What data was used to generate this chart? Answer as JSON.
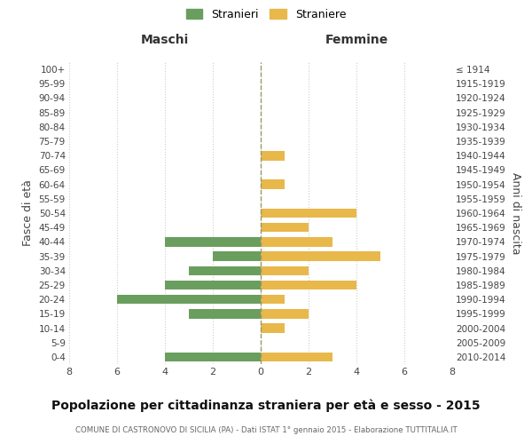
{
  "age_groups": [
    "100+",
    "95-99",
    "90-94",
    "85-89",
    "80-84",
    "75-79",
    "70-74",
    "65-69",
    "60-64",
    "55-59",
    "50-54",
    "45-49",
    "40-44",
    "35-39",
    "30-34",
    "25-29",
    "20-24",
    "15-19",
    "10-14",
    "5-9",
    "0-4"
  ],
  "birth_years": [
    "≤ 1914",
    "1915-1919",
    "1920-1924",
    "1925-1929",
    "1930-1934",
    "1935-1939",
    "1940-1944",
    "1945-1949",
    "1950-1954",
    "1955-1959",
    "1960-1964",
    "1965-1969",
    "1970-1974",
    "1975-1979",
    "1980-1984",
    "1985-1989",
    "1990-1994",
    "1995-1999",
    "2000-2004",
    "2005-2009",
    "2010-2014"
  ],
  "maschi": [
    0,
    0,
    0,
    0,
    0,
    0,
    0,
    0,
    0,
    0,
    0,
    0,
    4,
    2,
    3,
    4,
    6,
    3,
    0,
    0,
    4
  ],
  "femmine": [
    0,
    0,
    0,
    0,
    0,
    0,
    1,
    0,
    1,
    0,
    4,
    2,
    3,
    5,
    2,
    4,
    1,
    2,
    1,
    0,
    3
  ],
  "color_maschi": "#6a9e5e",
  "color_femmine": "#e8b84b",
  "title": "Popolazione per cittadinanza straniera per età e sesso - 2015",
  "subtitle": "COMUNE DI CASTRONOVO DI SICILIA (PA) - Dati ISTAT 1° gennaio 2015 - Elaborazione TUTTITALIA.IT",
  "ylabel_left": "Fasce di età",
  "ylabel_right": "Anni di nascita",
  "xlabel_left": "Maschi",
  "xlabel_right": "Femmine",
  "legend_maschi": "Stranieri",
  "legend_femmine": "Straniere",
  "xlim": 8,
  "background_color": "#ffffff",
  "grid_color": "#cccccc"
}
